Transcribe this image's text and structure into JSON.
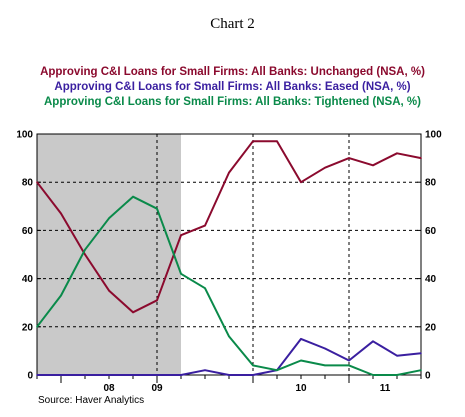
{
  "header": {
    "title": "Chart 2"
  },
  "source": "Source: Haver Analytics",
  "colors": {
    "unchanged": "#8b0a2e",
    "eased": "#3a1fa0",
    "tightened": "#0a8a4a",
    "recession": "#c9c9c9"
  },
  "chart_data": {
    "type": "line",
    "title": "Chart 2",
    "ylim": [
      0,
      100
    ],
    "y_ticks": [
      "0",
      "20",
      "40",
      "60",
      "80",
      "100"
    ],
    "x_tick_labels": [
      "08",
      "09",
      "10",
      "11"
    ],
    "grid": true,
    "shaded_region": {
      "from": 2007.75,
      "to": 2009.25,
      "label": ""
    },
    "series": [
      {
        "name": "Approving C&I Loans for Small Firms: All Banks: Unchanged (NSA, %)",
        "color": "#8b0a2e",
        "points": [
          [
            2007.75,
            80
          ],
          [
            2008.0,
            67
          ],
          [
            2008.25,
            50
          ],
          [
            2008.5,
            35
          ],
          [
            2008.75,
            26
          ],
          [
            2009.0,
            31
          ],
          [
            2009.25,
            58
          ],
          [
            2009.5,
            62
          ],
          [
            2009.75,
            84
          ],
          [
            2010.0,
            97
          ],
          [
            2010.25,
            97
          ],
          [
            2010.5,
            80
          ],
          [
            2010.75,
            86
          ],
          [
            2011.0,
            90
          ],
          [
            2011.25,
            87
          ],
          [
            2011.5,
            92
          ],
          [
            2011.75,
            90
          ]
        ]
      },
      {
        "name": "Approving C&I Loans for Small Firms: All Banks: Eased (NSA, %)",
        "color": "#3a1fa0",
        "points": [
          [
            2007.75,
            0
          ],
          [
            2008.0,
            0
          ],
          [
            2008.25,
            0
          ],
          [
            2008.5,
            0
          ],
          [
            2008.75,
            0
          ],
          [
            2009.0,
            0
          ],
          [
            2009.25,
            0
          ],
          [
            2009.5,
            2
          ],
          [
            2009.75,
            0
          ],
          [
            2010.0,
            0
          ],
          [
            2010.25,
            2
          ],
          [
            2010.5,
            15
          ],
          [
            2010.75,
            11
          ],
          [
            2011.0,
            6
          ],
          [
            2011.25,
            14
          ],
          [
            2011.5,
            8
          ],
          [
            2011.75,
            9
          ]
        ]
      },
      {
        "name": "Approving C&I Loans for Small Firms: All Banks: Tightened (NSA, %)",
        "color": "#0a8a4a",
        "points": [
          [
            2007.75,
            20
          ],
          [
            2008.0,
            33
          ],
          [
            2008.25,
            52
          ],
          [
            2008.5,
            65
          ],
          [
            2008.75,
            74
          ],
          [
            2009.0,
            69
          ],
          [
            2009.25,
            42
          ],
          [
            2009.5,
            36
          ],
          [
            2009.75,
            16
          ],
          [
            2010.0,
            4
          ],
          [
            2010.25,
            2
          ],
          [
            2010.5,
            6
          ],
          [
            2010.75,
            4
          ],
          [
            2011.0,
            4
          ],
          [
            2011.25,
            0
          ],
          [
            2011.5,
            0
          ],
          [
            2011.75,
            2
          ]
        ]
      }
    ]
  }
}
